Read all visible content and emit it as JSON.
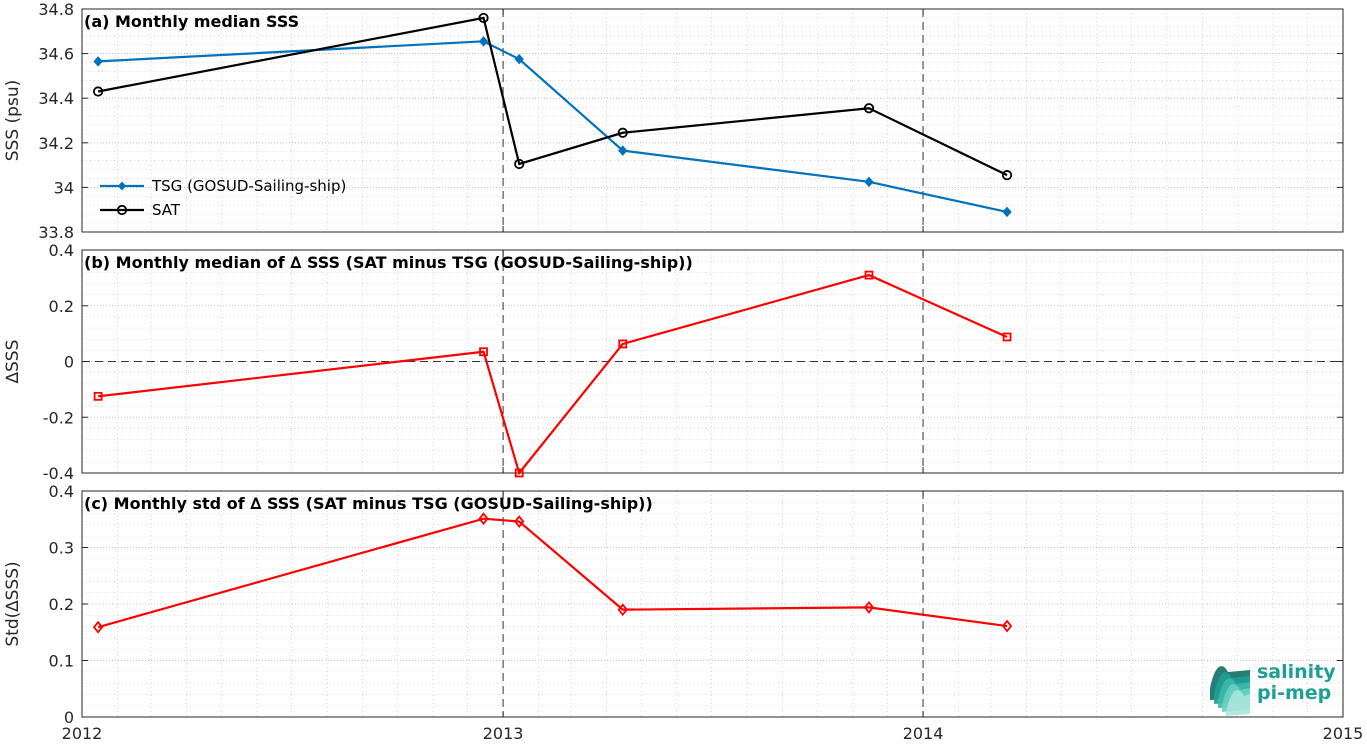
{
  "chart_data": [
    {
      "id": "a",
      "type": "line",
      "title": "(a) Monthly median SSS",
      "xlabel": "",
      "ylabel": "SSS (psu)",
      "xlim": [
        "2012-01-01",
        "2015-01-01"
      ],
      "ylim": [
        33.8,
        34.8
      ],
      "yticks": [
        33.8,
        34,
        34.2,
        34.4,
        34.6,
        34.8
      ],
      "ytick_labels": [
        "33.8",
        "34",
        "34.2",
        "34.4",
        "34.6",
        "34.8"
      ],
      "xtick_labels": [
        "2012",
        "2013",
        "2014",
        "2015"
      ],
      "grid": true,
      "legend_position": "bottom-left",
      "series": [
        {
          "name": "TSG (GOSUD-Sailing-ship)",
          "color": "#0072bd",
          "marker": "filled-diamond",
          "x": [
            "2012-01-15",
            "2012-12-15",
            "2013-01-15",
            "2013-04-15",
            "2013-11-15",
            "2014-03-15"
          ],
          "y": [
            34.565,
            34.655,
            34.575,
            34.165,
            34.025,
            33.89
          ]
        },
        {
          "name": "SAT",
          "color": "#000000",
          "marker": "circle",
          "x": [
            "2012-01-15",
            "2012-12-15",
            "2013-01-15",
            "2013-04-15",
            "2013-11-15",
            "2014-03-15"
          ],
          "y": [
            34.43,
            34.76,
            34.105,
            34.245,
            34.355,
            34.055
          ]
        }
      ]
    },
    {
      "id": "b",
      "type": "line",
      "title": "(b) Monthly median of ∆ SSS (SAT minus TSG (GOSUD-Sailing-ship))",
      "xlabel": "",
      "ylabel": "∆SSS",
      "xlim": [
        "2012-01-01",
        "2015-01-01"
      ],
      "ylim": [
        -0.4,
        0.4
      ],
      "yticks": [
        -0.4,
        -0.2,
        0,
        0.2,
        0.4
      ],
      "ytick_labels": [
        "-0.4",
        "-0.2",
        "0",
        "0.2",
        "0.4"
      ],
      "grid": true,
      "zero_line": true,
      "series": [
        {
          "color": "#ff0000",
          "marker": "square",
          "x": [
            "2012-01-15",
            "2012-12-15",
            "2013-01-15",
            "2013-04-15",
            "2013-11-15",
            "2014-03-15"
          ],
          "y": [
            -0.125,
            0.035,
            -0.4,
            0.063,
            0.31,
            0.088
          ]
        }
      ]
    },
    {
      "id": "c",
      "type": "line",
      "title": "(c) Monthly std of ∆ SSS (SAT minus TSG (GOSUD-Sailing-ship))",
      "xlabel": "",
      "ylabel": "Std(∆SSS)",
      "xlim": [
        "2012-01-01",
        "2015-01-01"
      ],
      "ylim": [
        0,
        0.4
      ],
      "yticks": [
        0,
        0.1,
        0.2,
        0.3,
        0.4
      ],
      "ytick_labels": [
        "0",
        "0.1",
        "0.2",
        "0.3",
        "0.4"
      ],
      "xtick_labels": [
        "2012",
        "2013",
        "2014",
        "2015"
      ],
      "grid": true,
      "series": [
        {
          "color": "#ff0000",
          "marker": "diamond",
          "x": [
            "2012-01-15",
            "2012-12-15",
            "2013-01-15",
            "2013-04-15",
            "2013-11-15",
            "2014-03-15"
          ],
          "y": [
            0.159,
            0.351,
            0.346,
            0.19,
            0.194,
            0.161
          ]
        }
      ]
    }
  ],
  "logo": {
    "line1": "salinity",
    "line2": "pi-mep",
    "color": "#1f9e93"
  }
}
